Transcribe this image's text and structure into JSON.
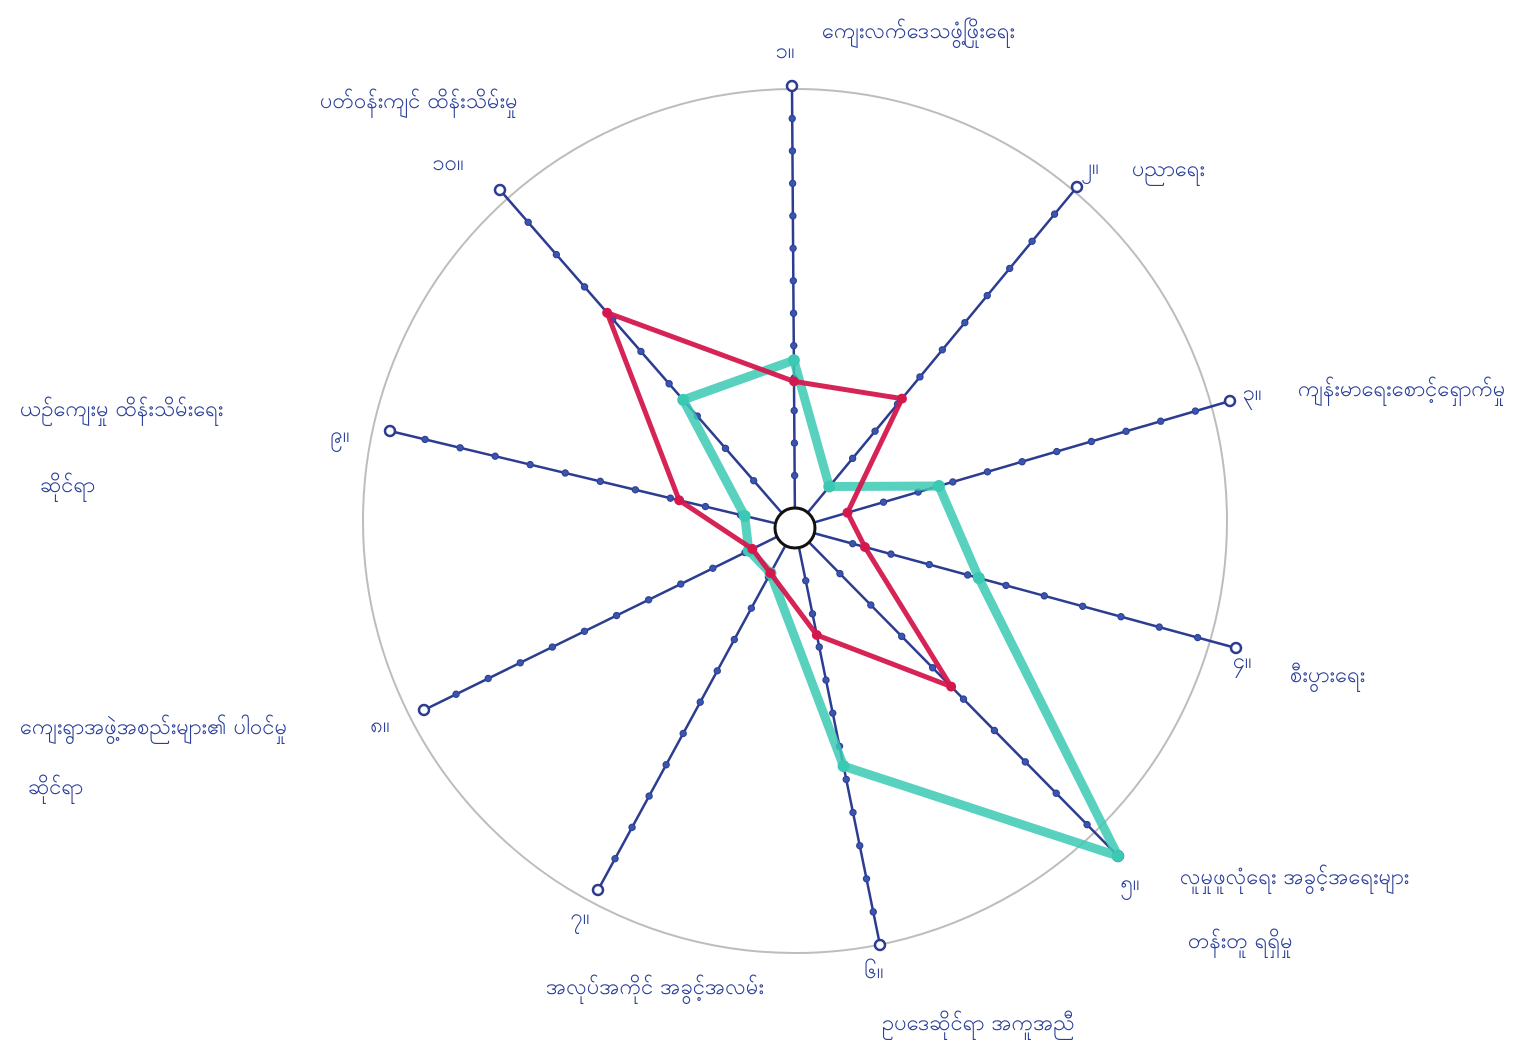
{
  "diagram": {
    "type": "radar",
    "colors": {
      "circle": "#bdbdbd",
      "axis": "#2c3d91",
      "tick": "#3a55b0",
      "series_red": "#d4184e",
      "series_teal": "#3cc9b4",
      "label": "#2a3f9a"
    },
    "axes": [
      {
        "num": "၁။",
        "text": [
          "ကျေးလက်ဒေသဖွံ့ဖြိုးရေး"
        ]
      },
      {
        "num": "၂။",
        "text": [
          "ပညာရေး"
        ]
      },
      {
        "num": "၃။",
        "text": [
          "ကျန်းမာရေးစောင့်ရှောက်မှု"
        ]
      },
      {
        "num": "၄။",
        "text": [
          "စီးပွားရေး"
        ]
      },
      {
        "num": "၅။",
        "text": [
          "လူမှုဖူလုံရေး အခွင့်အရေးများ",
          "တန်းတူ ရရှိမှု"
        ]
      },
      {
        "num": "၆။",
        "text": [
          "ဥပဒေဆိုင်ရာ အကူအညီ"
        ]
      },
      {
        "num": "၇။",
        "text": [
          "အလုပ်အကိုင် အခွင့်အလမ်း"
        ]
      },
      {
        "num": "၈။",
        "text": [
          "ကျေးရွာအဖွဲ့အစည်းများ၏ ပါဝင်မှု",
          "ဆိုင်ရာ"
        ]
      },
      {
        "num": "၉။",
        "text": [
          "ယဉ်ကျေးမှု ထိန်းသိမ်းရေး",
          "ဆိုင်ရာ"
        ]
      },
      {
        "num": "၁၀။",
        "text": [
          "ပတ်ဝန်းကျင် ထိန်းသိမ်းမှု"
        ]
      }
    ],
    "scale_max": 10,
    "series": [
      {
        "values": [
          3.0,
          3.5,
          0.8,
          1.2,
          4.6,
          2.2,
          0.8,
          0.7,
          2.5,
          6.2
        ]
      },
      {
        "values": [
          3.5,
          0.8,
          3.0,
          3.9,
          10.0,
          5.5,
          0.8,
          0.8,
          0.8,
          3.5
        ]
      }
    ]
  }
}
